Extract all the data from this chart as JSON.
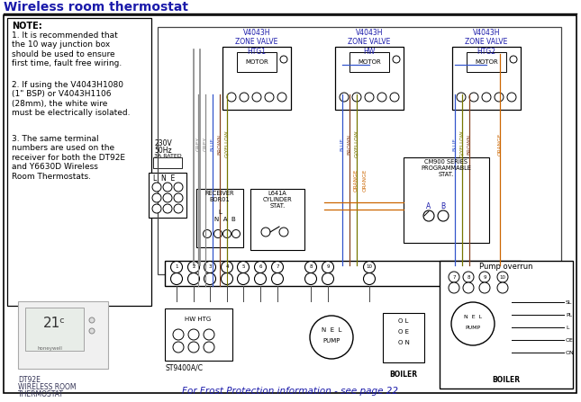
{
  "title": "Wireless room thermostat",
  "title_color": "#1a1aaa",
  "bg_color": "#ffffff",
  "note_lines": [
    "NOTE:",
    "1. It is recommended that",
    "the 10 way junction box",
    "should be used to ensure",
    "first time, fault free wiring.",
    "2. If using the V4043H1080",
    "(1\" BSP) or V4043H1106",
    "(28mm), the white wire",
    "must be electrically isolated.",
    "3. The same terminal",
    "numbers are used on the",
    "receiver for both the DT92E",
    "and Y6630D Wireless",
    "Room Thermostats."
  ],
  "footer_text": "For Frost Protection information - see page 22",
  "footer_color": "#1a1aaa",
  "wire_grey": "#888888",
  "wire_blue": "#3355cc",
  "wire_brown": "#884422",
  "wire_gyellow": "#777700",
  "wire_orange": "#cc6600",
  "wire_black": "#222222"
}
